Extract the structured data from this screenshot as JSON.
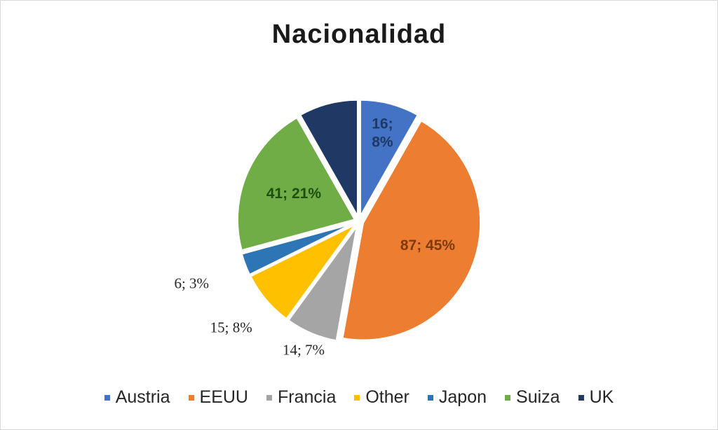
{
  "chart_data": {
    "type": "pie",
    "title": "Nacionalidad",
    "categories": [
      "Austria",
      "EEUU",
      "Francia",
      "Other",
      "Japon",
      "Suiza",
      "UK"
    ],
    "values": [
      16,
      87,
      14,
      15,
      6,
      41,
      16
    ],
    "percent_labels": [
      "8%",
      "45%",
      "7%",
      "8%",
      "3%",
      "21%",
      ""
    ],
    "data_labels": [
      "16; 8%",
      "87; 45%",
      "14; 7%",
      "15; 8%",
      "6; 3%",
      "41; 21%",
      ""
    ],
    "colors": [
      "#4472c4",
      "#ed7d31",
      "#a5a5a5",
      "#ffc000",
      "#2e75b6",
      "#70ad47",
      "#203864"
    ],
    "legend_position": "bottom",
    "start_angle_deg": 0,
    "direction": "clockwise",
    "exploded": true
  }
}
